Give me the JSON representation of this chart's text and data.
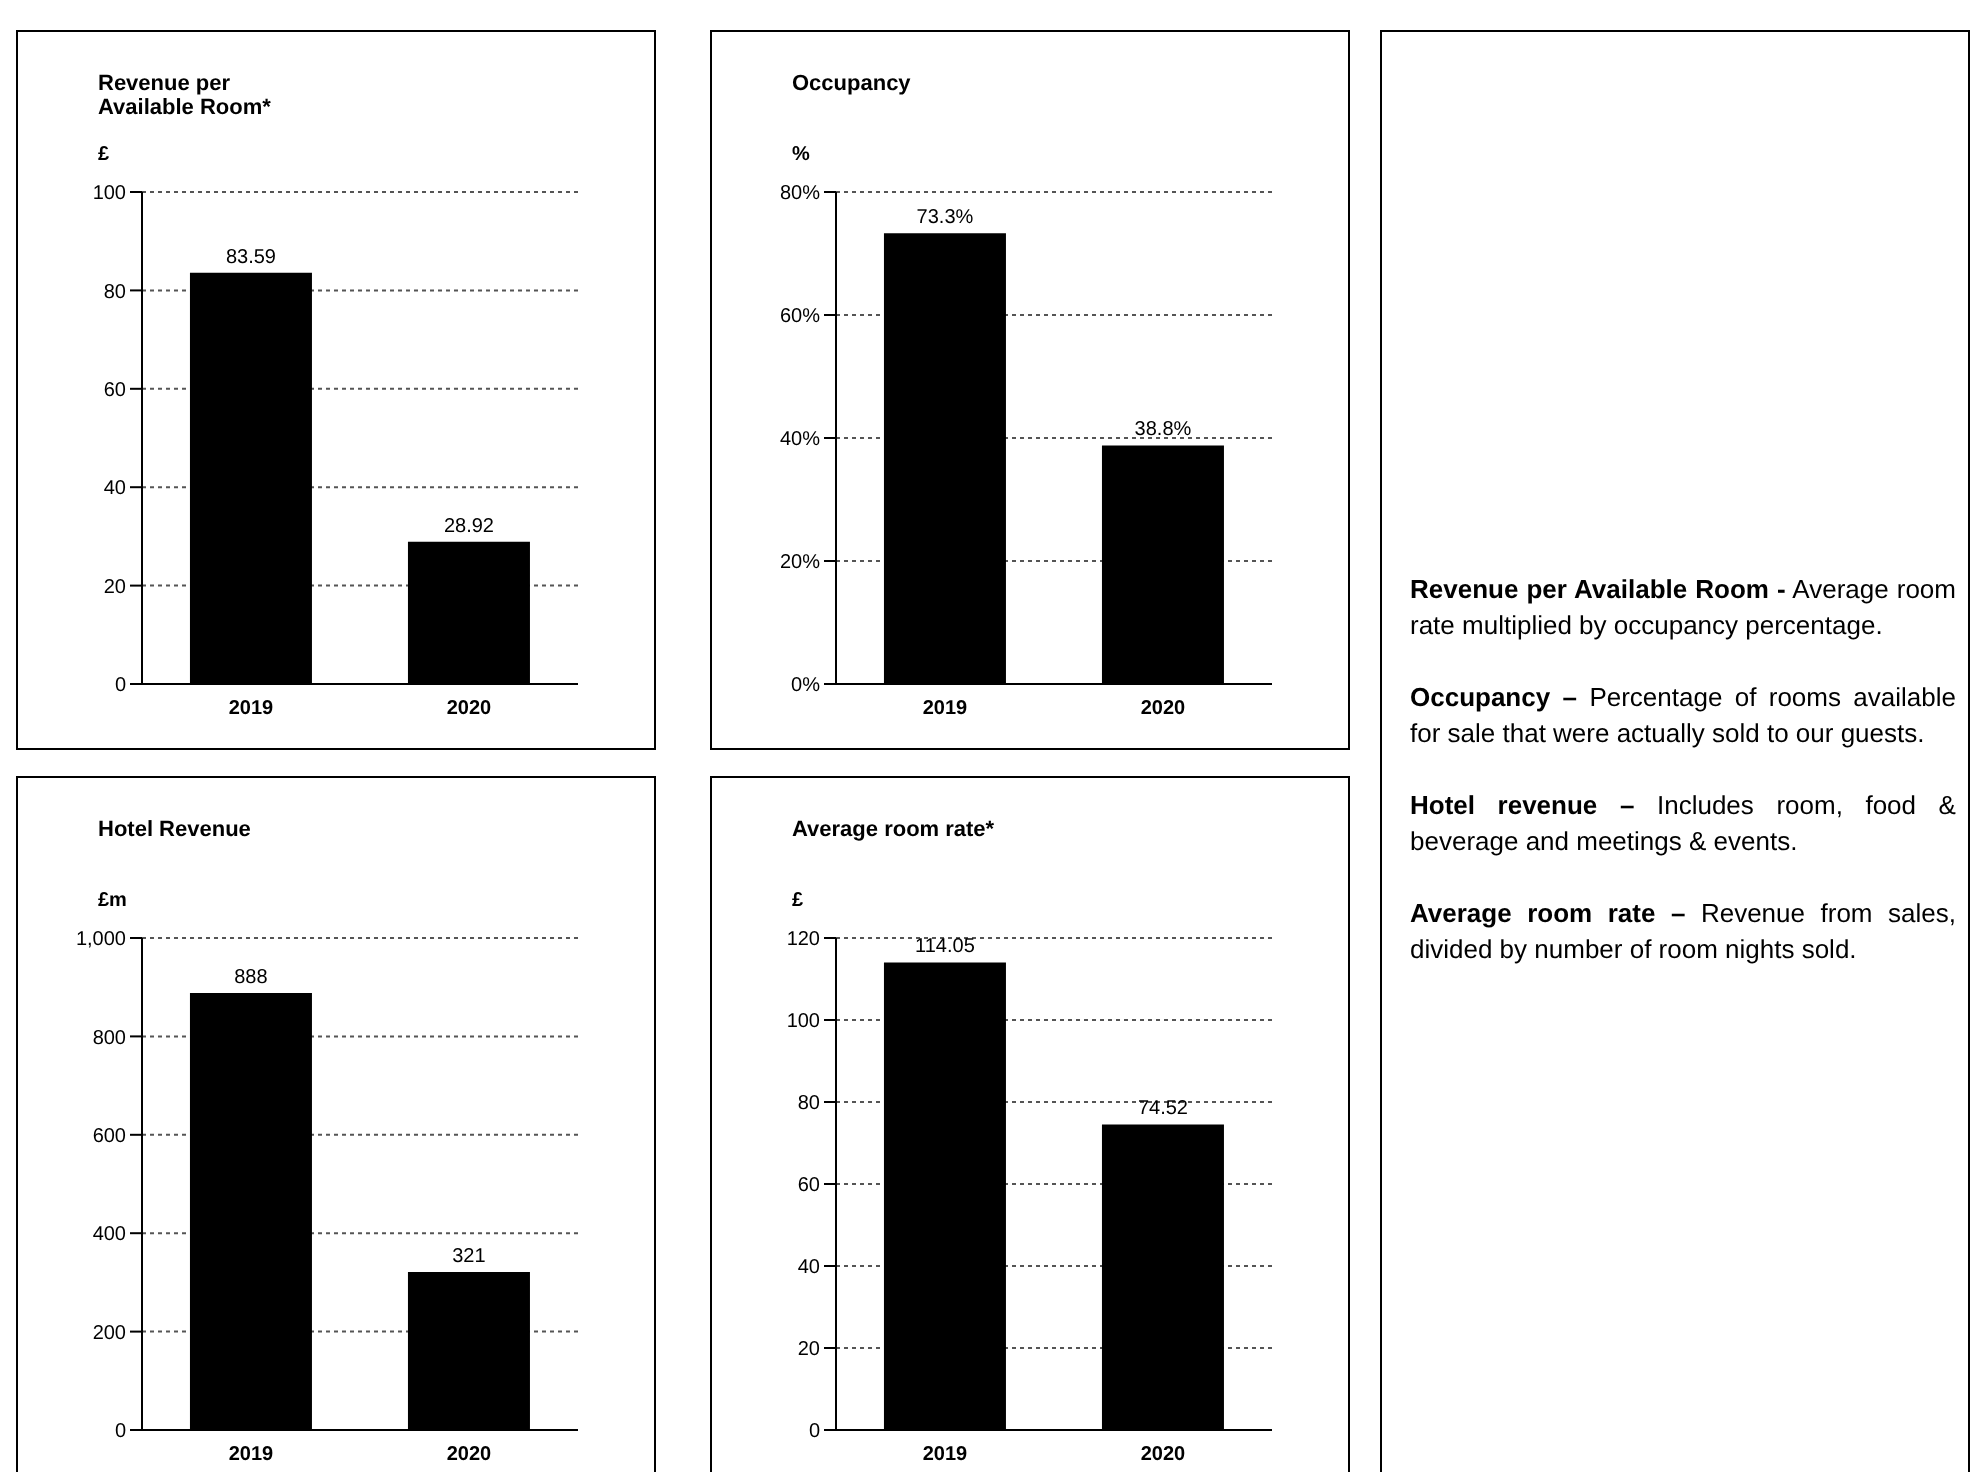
{
  "chart_data": [
    {
      "type": "bar",
      "title": "Revenue per Available Room*",
      "ylabel": "£",
      "categories": [
        "2019",
        "2020"
      ],
      "values": [
        83.59,
        28.92
      ],
      "color": "#000000",
      "ylim": [
        0,
        100
      ],
      "yticks": [
        0,
        20,
        40,
        60,
        80,
        100
      ],
      "grid": "y",
      "data_labels": true
    },
    {
      "type": "bar",
      "title": "Occupancy",
      "ylabel": "%",
      "categories": [
        "2019",
        "2020"
      ],
      "values": [
        73.3,
        38.8
      ],
      "value_labels": [
        "73.3%",
        "38.8%"
      ],
      "color": "#000000",
      "ylim": [
        0,
        80
      ],
      "yticks": [
        {
          "value": 0,
          "label": "0%"
        },
        {
          "value": 20,
          "label": "20%"
        },
        {
          "value": 40,
          "label": "40%"
        },
        {
          "value": 60,
          "label": "60%"
        },
        {
          "value": 80,
          "label": "80%"
        }
      ],
      "grid": "y"
    },
    {
      "type": "bar",
      "title": "Hotel Revenue",
      "ylabel": "£m",
      "categories": [
        "2019",
        "2020"
      ],
      "values": [
        888,
        321
      ],
      "color": "#000000",
      "ylim": [
        0,
        1000
      ],
      "yticks": [
        0,
        200,
        400,
        600,
        800,
        {
          "value": 1000,
          "label": "1,000"
        }
      ],
      "grid": "y",
      "data_labels": true
    },
    {
      "type": "bar",
      "title": "Average room rate*",
      "ylabel": "£",
      "categories": [
        "2019",
        "2020"
      ],
      "values": [
        114.05,
        74.52
      ],
      "color": "#000000",
      "ylim": [
        0,
        120
      ],
      "yticks": [
        0,
        20,
        40,
        60,
        80,
        100,
        120
      ],
      "grid": "y",
      "data_labels": true
    },
    {
      "type": "other",
      "annotations": [
        "Revenue per Available Room -",
        "Average room rate multiplied by occupancy percentage.",
        "Occupancy –",
        "Percentage of rooms available for sale that were actually sold to our guests.",
        "Hotel revenue –",
        "Includes room, food & beverage and meetings & events.",
        "Average room rate –",
        "Revenue from sales, divided by number of room nights sold."
      ]
    }
  ]
}
